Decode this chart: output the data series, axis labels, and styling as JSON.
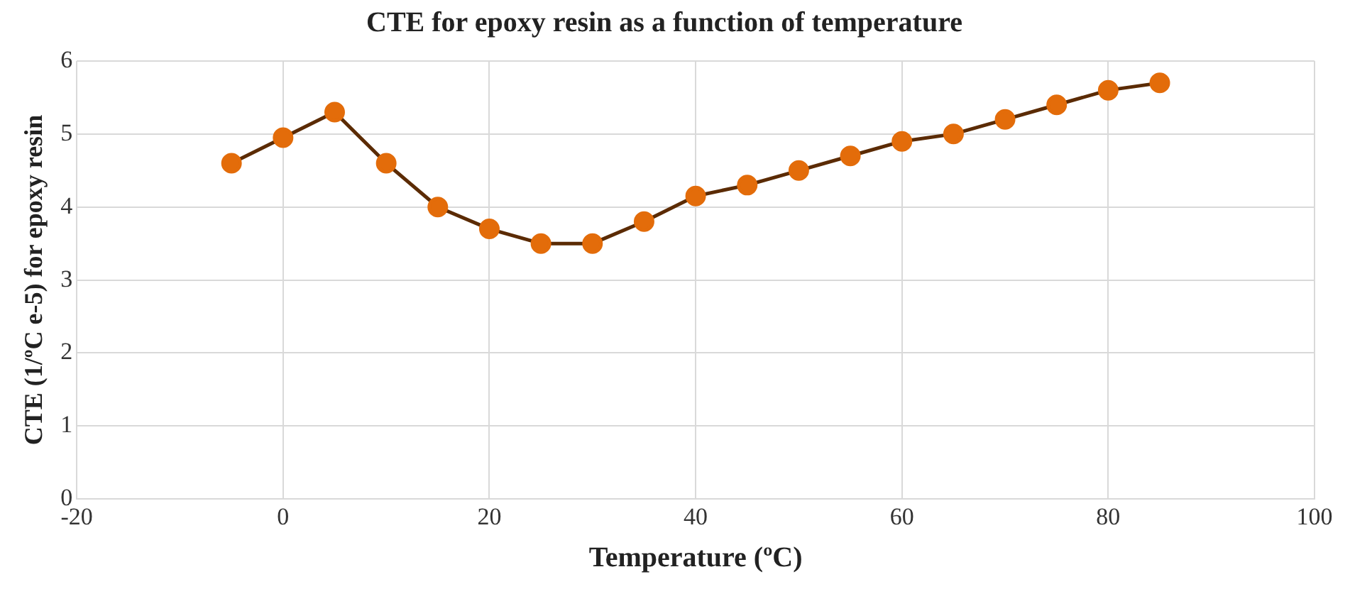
{
  "chart_data": {
    "type": "line",
    "title": "CTE for epoxy resin as a function of temperature",
    "xlabel": "Temperature (ºC)",
    "ylabel": "CTE (1/ºC e-5) for epoxy resin",
    "x": [
      -5,
      0,
      5,
      10,
      15,
      20,
      25,
      30,
      35,
      40,
      45,
      50,
      55,
      60,
      65,
      70,
      75,
      80,
      85
    ],
    "series": [
      {
        "color": "#e36c0a",
        "values": [
          4.6,
          4.95,
          5.3,
          4.6,
          4.0,
          3.7,
          3.5,
          3.5,
          3.8,
          4.15,
          4.3,
          4.5,
          4.7,
          4.9,
          5.0,
          5.2,
          5.4,
          5.6,
          5.7
        ]
      }
    ],
    "xlim": [
      -20,
      100
    ],
    "xticks": [
      -20,
      0,
      20,
      40,
      60,
      80,
      100
    ],
    "ylim": [
      0,
      6
    ],
    "yticks": [
      0,
      1,
      2,
      3,
      4,
      5,
      6
    ],
    "grid": true,
    "legend": false,
    "marker": "circle",
    "line_style": "solid"
  }
}
